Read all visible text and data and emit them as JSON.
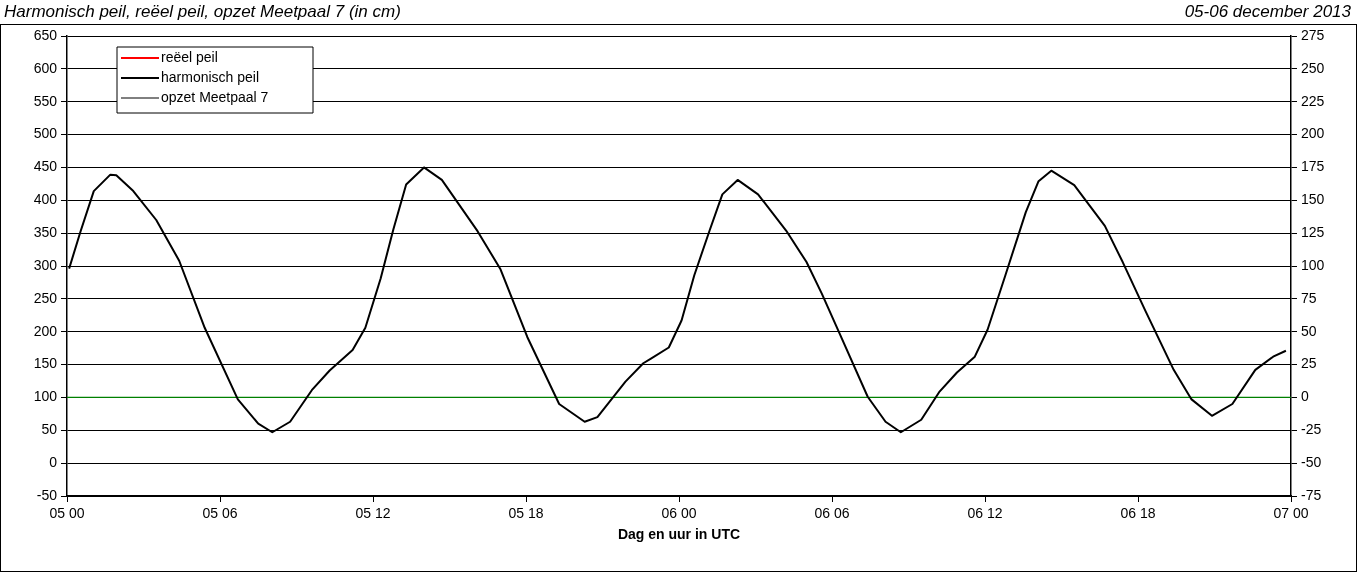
{
  "chart_data": {
    "type": "line",
    "title": "Harmonisch peil, reëel peil, opzet Meetpaal 7 (in cm)",
    "subtitle": "05-06 december 2013",
    "xlabel": "Dag en uur in UTC",
    "xlim": [
      "2013-12-05T00:00",
      "2013-12-07T00:00"
    ],
    "xticks": [
      {
        "value": "2013-12-05T00:00",
        "label": "05 00"
      },
      {
        "value": "2013-12-05T06:00",
        "label": "05 06"
      },
      {
        "value": "2013-12-05T12:00",
        "label": "05 12"
      },
      {
        "value": "2013-12-05T18:00",
        "label": "05 18"
      },
      {
        "value": "2013-12-06T00:00",
        "label": "06 00"
      },
      {
        "value": "2013-12-06T06:00",
        "label": "06 06"
      },
      {
        "value": "2013-12-06T12:00",
        "label": "06 12"
      },
      {
        "value": "2013-12-06T18:00",
        "label": "06 18"
      },
      {
        "value": "2013-12-07T00:00",
        "label": "07 00"
      }
    ],
    "ylim": [
      -50,
      650
    ],
    "yticks": [
      -50,
      0,
      50,
      100,
      150,
      200,
      250,
      300,
      350,
      400,
      450,
      500,
      550,
      600,
      650
    ],
    "y2lim": [
      -75,
      275
    ],
    "y2ticks": [
      -75,
      -50,
      -25,
      0,
      25,
      50,
      75,
      100,
      125,
      150,
      175,
      200,
      225,
      250,
      275
    ],
    "grid": "y",
    "legend": "top left",
    "marker": "none",
    "ref_lines": [
      {
        "axis": "y2",
        "value": 0,
        "color": "#008000"
      }
    ],
    "series": [
      {
        "name": "reëel peil",
        "color": "#ff0000"
      },
      {
        "name": "harmonisch peil",
        "color": "#000000",
        "x": [
          "2013-12-05T00:05",
          "2013-12-05T00:32",
          "2013-12-05T01:03",
          "2013-12-05T01:42",
          "2013-12-05T01:56",
          "2013-12-05T02:36",
          "2013-12-05T03:30",
          "2013-12-05T04:24",
          "2013-12-05T05:24",
          "2013-12-05T06:42",
          "2013-12-05T07:30",
          "2013-12-05T08:03",
          "2013-12-05T08:45",
          "2013-12-05T09:36",
          "2013-12-05T10:18",
          "2013-12-05T11:12",
          "2013-12-05T11:42",
          "2013-12-05T12:18",
          "2013-12-05T12:48",
          "2013-12-05T13:18",
          "2013-12-05T14:00",
          "2013-12-05T14:42",
          "2013-12-05T16:06",
          "2013-12-05T17:00",
          "2013-12-05T18:03",
          "2013-12-05T19:18",
          "2013-12-05T20:18",
          "2013-12-05T20:48",
          "2013-12-05T21:54",
          "2013-12-05T22:36",
          "2013-12-05T22:54",
          "2013-12-05T23:36",
          "2013-12-06T00:06",
          "2013-12-06T00:36",
          "2013-12-06T01:12",
          "2013-12-06T01:42",
          "2013-12-06T02:18",
          "2013-12-06T03:06",
          "2013-12-06T04:12",
          "2013-12-06T05:00",
          "2013-12-06T05:36",
          "2013-12-06T06:18",
          "2013-12-06T07:24",
          "2013-12-06T08:06",
          "2013-12-06T08:42",
          "2013-12-06T09:30",
          "2013-12-06T10:12",
          "2013-12-06T10:54",
          "2013-12-06T11:36",
          "2013-12-06T12:06",
          "2013-12-06T12:48",
          "2013-12-06T13:36",
          "2013-12-06T14:06",
          "2013-12-06T14:36",
          "2013-12-06T15:30",
          "2013-12-06T16:42",
          "2013-12-06T17:24",
          "2013-12-06T18:18",
          "2013-12-06T19:24",
          "2013-12-06T20:06",
          "2013-12-06T20:54",
          "2013-12-06T21:42",
          "2013-12-06T22:36",
          "2013-12-06T23:18",
          "2013-12-06T23:48"
        ],
        "values": [
          296,
          353,
          414,
          439,
          438,
          414,
          370,
          308,
          206,
          97,
          60,
          47,
          63,
          111,
          141,
          172,
          206,
          281,
          356,
          424,
          450,
          431,
          353,
          295,
          192,
          90,
          63,
          70,
          124,
          152,
          159,
          176,
          217,
          286,
          354,
          409,
          431,
          409,
          354,
          306,
          258,
          197,
          101,
          63,
          47,
          66,
          108,
          138,
          162,
          203,
          286,
          382,
          429,
          445,
          423,
          361,
          306,
          231,
          142,
          97,
          72,
          90,
          142,
          162,
          171
        ]
      },
      {
        "name": "opzet Meetpaal 7",
        "color": "#000000"
      }
    ]
  }
}
